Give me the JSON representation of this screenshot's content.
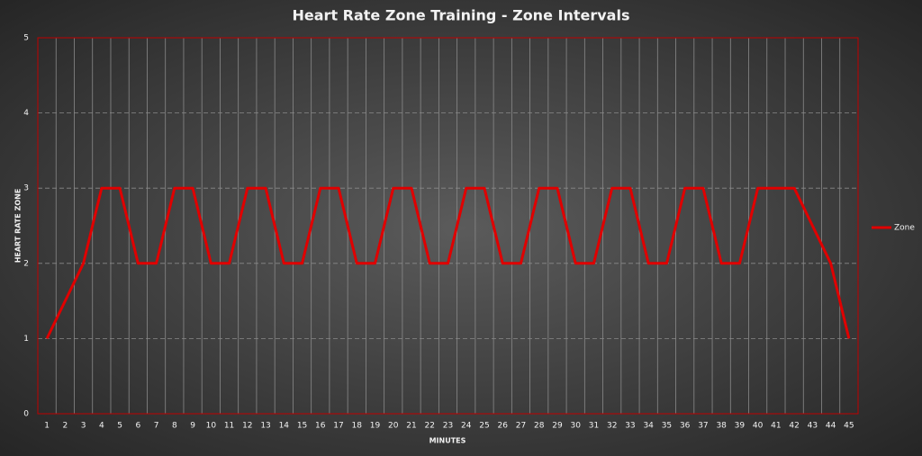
{
  "chart_data": {
    "type": "line",
    "title": "Heart Rate Zone Training - Zone Intervals",
    "x_label": "MINUTES",
    "y_label": "HEART RATE ZONE",
    "categories": [
      1,
      2,
      3,
      4,
      5,
      6,
      7,
      8,
      9,
      10,
      11,
      12,
      13,
      14,
      15,
      16,
      17,
      18,
      19,
      20,
      21,
      22,
      23,
      24,
      25,
      26,
      27,
      28,
      29,
      30,
      31,
      32,
      33,
      34,
      35,
      36,
      37,
      38,
      39,
      40,
      41,
      42,
      43,
      44,
      45
    ],
    "series": [
      {
        "name": "Zone",
        "color": "#e00000",
        "values": [
          1,
          1.5,
          2,
          3,
          3,
          2,
          2,
          3,
          3,
          2,
          2,
          3,
          3,
          2,
          2,
          3,
          3,
          2,
          2,
          3,
          3,
          2,
          2,
          3,
          3,
          2,
          2,
          3,
          3,
          2,
          2,
          3,
          3,
          2,
          2,
          3,
          3,
          2,
          2,
          3,
          3,
          3,
          2.5,
          2,
          1
        ]
      }
    ],
    "ylim": [
      0,
      5
    ],
    "yticks": [
      0,
      1,
      2,
      3,
      4,
      5
    ],
    "grid": true,
    "legend": "right"
  }
}
